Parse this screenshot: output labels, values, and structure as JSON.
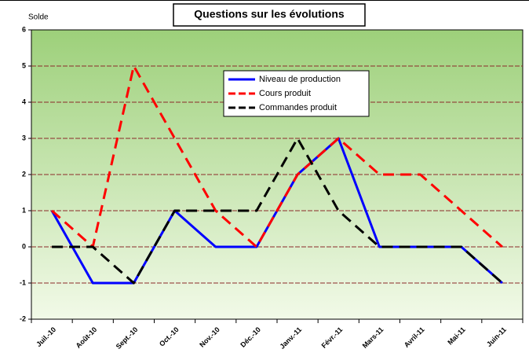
{
  "chart_data": {
    "type": "line",
    "title": "Questions sur les évolutions",
    "y_label": "Solde",
    "categories": [
      "Juil.-10",
      "Août-10",
      "Sept.-10",
      "Oct.-10",
      "Nov.-10",
      "Déc.-10",
      "Janv.-11",
      "Févr.-11",
      "Mars-11",
      "Avril-11",
      "Mai-11",
      "Juin-11"
    ],
    "series": [
      {
        "name": "Niveau de production",
        "color": "#0000ff",
        "dash": "solid",
        "values": [
          1,
          -1,
          -1,
          1,
          0,
          0,
          2,
          3,
          0,
          0,
          0,
          -1
        ]
      },
      {
        "name": "Cours produit",
        "color": "#ff0000",
        "dash": "dashed",
        "values": [
          1,
          0,
          5,
          3,
          1,
          0,
          2,
          3,
          2,
          2,
          1,
          0
        ]
      },
      {
        "name": "Commandes produit",
        "color": "#000000",
        "dash": "dashed",
        "values": [
          0,
          0,
          -1,
          1,
          1,
          1,
          3,
          1,
          0,
          0,
          0,
          -1
        ]
      }
    ],
    "ylim": [
      -2,
      6
    ],
    "yticks": [
      -2,
      -1,
      0,
      1,
      2,
      3,
      4,
      5,
      6
    ],
    "grid": true,
    "legend": "top-center"
  }
}
